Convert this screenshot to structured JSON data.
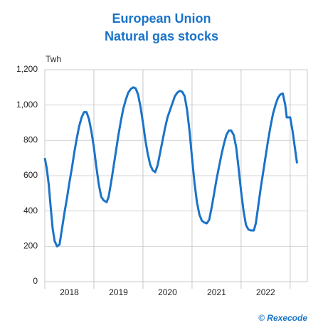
{
  "chart_data": {
    "type": "line",
    "title": "European Union",
    "subtitle": "Natural gas stocks",
    "y_label": "Twh",
    "source": "© Rexecode",
    "color": "#1a73c8",
    "grid": true,
    "xlim": [
      2018,
      2023.35
    ],
    "xticks": [
      2018,
      2019,
      2020,
      2021,
      2022
    ],
    "ylim": [
      0,
      1200
    ],
    "yticks": [
      0,
      200,
      400,
      600,
      800,
      {
        "value": 1000,
        "label": "1,000"
      },
      {
        "value": 1200,
        "label": "1,200"
      }
    ],
    "x": [
      2018.0,
      2018.04,
      2018.08,
      2018.12,
      2018.16,
      2018.2,
      2018.25,
      2018.3,
      2018.35,
      2018.4,
      2018.45,
      2018.5,
      2018.55,
      2018.6,
      2018.65,
      2018.7,
      2018.75,
      2018.8,
      2018.85,
      2018.9,
      2018.95,
      2019.0,
      2019.05,
      2019.1,
      2019.15,
      2019.2,
      2019.26,
      2019.3,
      2019.35,
      2019.4,
      2019.45,
      2019.5,
      2019.55,
      2019.6,
      2019.65,
      2019.7,
      2019.75,
      2019.8,
      2019.85,
      2019.9,
      2019.95,
      2020.0,
      2020.05,
      2020.1,
      2020.15,
      2020.2,
      2020.25,
      2020.3,
      2020.35,
      2020.4,
      2020.45,
      2020.5,
      2020.55,
      2020.6,
      2020.65,
      2020.7,
      2020.75,
      2020.8,
      2020.85,
      2020.9,
      2020.95,
      2021.0,
      2021.05,
      2021.1,
      2021.15,
      2021.2,
      2021.25,
      2021.3,
      2021.35,
      2021.4,
      2021.45,
      2021.5,
      2021.55,
      2021.6,
      2021.65,
      2021.7,
      2021.75,
      2021.8,
      2021.85,
      2021.9,
      2021.95,
      2022.0,
      2022.05,
      2022.1,
      2022.15,
      2022.2,
      2022.26,
      2022.3,
      2022.35,
      2022.4,
      2022.45,
      2022.5,
      2022.55,
      2022.6,
      2022.65,
      2022.7,
      2022.75,
      2022.8,
      2022.85,
      2022.9,
      2022.93,
      2023.0,
      2023.05,
      2023.1,
      2023.14
    ],
    "values": [
      700,
      640,
      550,
      420,
      300,
      230,
      200,
      210,
      300,
      390,
      470,
      560,
      640,
      730,
      810,
      880,
      930,
      960,
      960,
      920,
      850,
      760,
      650,
      550,
      480,
      460,
      450,
      480,
      560,
      650,
      740,
      830,
      910,
      980,
      1030,
      1070,
      1090,
      1100,
      1095,
      1060,
      990,
      900,
      800,
      720,
      660,
      630,
      620,
      660,
      730,
      800,
      870,
      930,
      970,
      1010,
      1050,
      1070,
      1080,
      1075,
      1050,
      970,
      850,
      700,
      560,
      450,
      380,
      345,
      335,
      330,
      350,
      420,
      500,
      580,
      650,
      720,
      780,
      830,
      855,
      855,
      830,
      760,
      640,
      510,
      400,
      320,
      295,
      290,
      290,
      330,
      430,
      530,
      620,
      710,
      800,
      880,
      950,
      1000,
      1040,
      1060,
      1065,
      1000,
      930,
      930,
      850,
      750,
      670
    ]
  }
}
